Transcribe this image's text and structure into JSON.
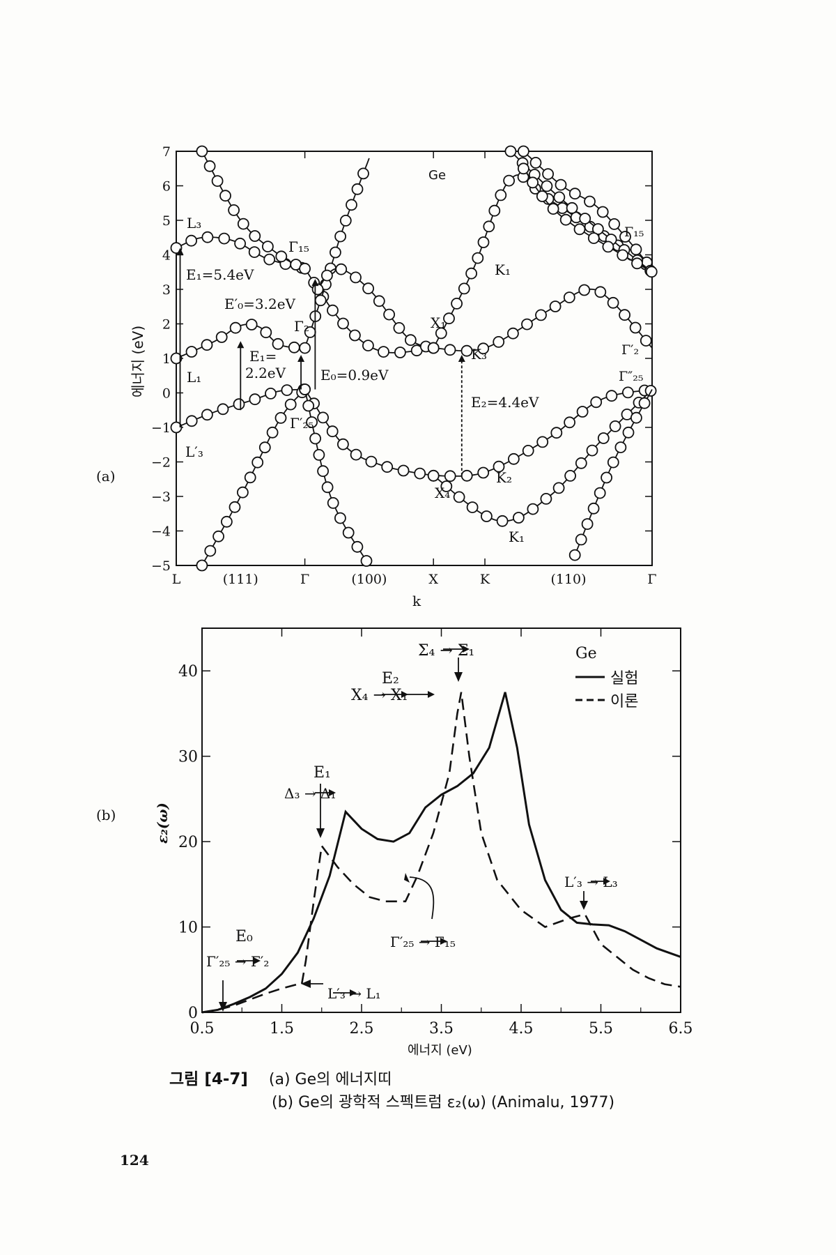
{
  "panel_a": {
    "panel_label": "(a)",
    "material": "Ge",
    "ylabel": "에너지 (eV)",
    "xlabel": "k",
    "y_ticks": [
      "7",
      "6",
      "5",
      "4",
      "3",
      "2",
      "1",
      "0",
      "−1",
      "−2",
      "−3",
      "−4",
      "−5"
    ],
    "x_ticks": [
      "L",
      "(111)",
      "Γ",
      "(100)",
      "X",
      "K",
      "(110)",
      "Γ"
    ],
    "annotations": {
      "L3": "L₃",
      "L1": "L₁",
      "L3p": "L′₃",
      "G15a": "Γ₁₅",
      "G2": "Γ₂",
      "G25p": "Γ′₂₅",
      "K1a": "K₁",
      "X1": "X₁",
      "K3": "K₃",
      "K2": "K₂",
      "X4": "X₄",
      "K1b": "K₁",
      "G15b": "Γ₁₅",
      "G2p": "Γ′₂",
      "G25pp": "Γ″₂₅",
      "E1a": "E₁=5.4eV",
      "E0p": "E′₀=3.2eV",
      "E1b1": "E₁=",
      "E1b2": "2.2eV",
      "E0": "E₀=0.9eV",
      "E2": "E₂=4.4eV"
    }
  },
  "panel_b": {
    "panel_label": "(b)",
    "ylabel": "ε₂(ω)",
    "xlabel": "에너지 (eV)",
    "y_ticks": [
      "0",
      "10",
      "20",
      "30",
      "40"
    ],
    "x_ticks": [
      "0.5",
      "1.5",
      "2.5",
      "3.5",
      "4.5",
      "5.5",
      "6.5"
    ],
    "legend": {
      "title": "Ge",
      "experiment": "실험",
      "theory": "이론"
    },
    "annotations": {
      "E0": "E₀",
      "E0_trans": "Γ′₂₅ → Γ′₂",
      "L3_L1": "L′₃ → L₁",
      "E1": "E₁",
      "E1_trans": "Δ₃ → Δ₁",
      "E2": "E₂",
      "E2_trans": "X₄ → X₁",
      "Sigma": "Σ₄ → Σ₁",
      "G25_G15": "Γ′₂₅ → Γ₁₅",
      "L3_L3": "L′₃ → L₃"
    }
  },
  "caption": {
    "figure": "그림 [4-7]",
    "line_a": "(a)  Ge의  에너지띠",
    "line_b": "(b)  Ge의  광학적  스펙트럼  ε₂(ω)  (Animalu, 1977)"
  },
  "page_number": "124",
  "chart_data": [
    {
      "type": "line",
      "title": "",
      "xlabel": "k",
      "ylabel": "에너지 (eV)",
      "ylim": [
        -5,
        7
      ],
      "x_categories": [
        "L",
        "Γ",
        "X",
        "K",
        "Γ"
      ],
      "x_positions": [
        0,
        1,
        2.0,
        2.4,
        3.7
      ],
      "series": [
        {
          "points": [
            [
              0,
              4.2
            ],
            [
              0.2,
              4.5
            ],
            [
              0.45,
              4.4
            ],
            [
              0.7,
              3.9
            ],
            [
              1,
              3.6
            ]
          ]
        },
        {
          "points": [
            [
              0,
              1.0
            ],
            [
              0.3,
              1.5
            ],
            [
              0.5,
              1.95
            ],
            [
              0.65,
              1.9
            ],
            [
              0.8,
              1.4
            ],
            [
              1,
              1.3
            ]
          ]
        },
        {
          "points": [
            [
              0,
              -1.0
            ],
            [
              0.3,
              -0.55
            ],
            [
              0.6,
              -0.2
            ],
            [
              0.8,
              0.05
            ],
            [
              1,
              0.1
            ]
          ]
        },
        {
          "points": [
            [
              0.2,
              7.0
            ],
            [
              0.5,
              5.0
            ],
            [
              0.8,
              4.0
            ],
            [
              1,
              3.6
            ]
          ]
        },
        {
          "points": [
            [
              0.2,
              -5.0
            ],
            [
              0.5,
              -3.0
            ],
            [
              0.8,
              -0.8
            ],
            [
              1,
              0.1
            ]
          ]
        },
        {
          "points": [
            [
              1,
              3.6
            ],
            [
              1.3,
              2.0
            ],
            [
              1.6,
              1.2
            ],
            [
              2.0,
              1.3
            ]
          ]
        },
        {
          "points": [
            [
              1,
              1.3
            ],
            [
              1.15,
              3.0
            ],
            [
              1.3,
              4.8
            ],
            [
              1.5,
              6.8
            ]
          ]
        },
        {
          "points": [
            [
              1,
              0.1
            ],
            [
              1.3,
              -1.5
            ],
            [
              1.6,
              -2.1
            ],
            [
              2.0,
              -2.4
            ]
          ]
        },
        {
          "points": [
            [
              1,
              0.1
            ],
            [
              1.2,
              -3.0
            ],
            [
              1.5,
              -5.0
            ]
          ]
        },
        {
          "points": [
            [
              1.1,
              3.0
            ],
            [
              1.25,
              3.6
            ],
            [
              1.5,
              3.0
            ],
            [
              1.8,
              1.6
            ],
            [
              2.0,
              1.3
            ]
          ]
        },
        {
          "points": [
            [
              2.0,
              1.3
            ],
            [
              2.4,
              1.3
            ],
            [
              2.9,
              2.4
            ],
            [
              3.2,
              3.0
            ],
            [
              3.4,
              2.6
            ],
            [
              3.7,
              1.3
            ]
          ]
        },
        {
          "points": [
            [
              2.0,
              1.3
            ],
            [
              2.3,
              3.5
            ],
            [
              2.6,
              6.2
            ],
            [
              2.9,
              5.6
            ],
            [
              3.7,
              3.6
            ]
          ]
        },
        {
          "points": [
            [
              2.0,
              -2.4
            ],
            [
              2.4,
              -2.3
            ],
            [
              2.9,
              -1.3
            ],
            [
              3.3,
              -0.2
            ],
            [
              3.7,
              0.1
            ]
          ]
        },
        {
          "points": [
            [
              2.0,
              -2.4
            ],
            [
              2.5,
              -3.7
            ],
            [
              2.9,
              -3.0
            ],
            [
              3.3,
              -1.4
            ],
            [
              3.7,
              0.1
            ]
          ]
        },
        {
          "points": [
            [
              3.1,
              -4.7
            ],
            [
              3.4,
              -2.0
            ],
            [
              3.7,
              0.1
            ]
          ]
        },
        {
          "points": [
            [
              2.7,
              7.0
            ],
            [
              3.0,
              6.0
            ],
            [
              3.3,
              5.3
            ],
            [
              3.7,
              3.6
            ]
          ]
        },
        {
          "points": [
            [
              2.6,
              7.0
            ],
            [
              3.0,
              5.6
            ],
            [
              3.7,
              3.5
            ]
          ]
        },
        {
          "points": [
            [
              2.7,
              6.5
            ],
            [
              3.0,
              5.1
            ],
            [
              3.7,
              3.5
            ]
          ]
        }
      ]
    },
    {
      "type": "line",
      "title": "",
      "xlabel": "에너지 (eV)",
      "ylabel": "ε₂(ω)",
      "xlim": [
        0.5,
        6.5
      ],
      "ylim": [
        0,
        45
      ],
      "series": [
        {
          "name": "실험",
          "x": [
            0.5,
            0.7,
            0.9,
            1.1,
            1.3,
            1.5,
            1.7,
            1.9,
            2.1,
            2.3,
            2.5,
            2.7,
            2.9,
            3.1,
            3.3,
            3.5,
            3.7,
            3.9,
            4.1,
            4.3,
            4.45,
            4.6,
            4.8,
            5.0,
            5.2,
            5.4,
            5.6,
            5.8,
            6.0,
            6.2,
            6.5
          ],
          "y": [
            0,
            0.3,
            1,
            1.8,
            2.8,
            4.5,
            7,
            11,
            16,
            23.5,
            21.5,
            20.3,
            20,
            21,
            24,
            25.5,
            26.5,
            28,
            31,
            37.5,
            31,
            22,
            15.5,
            12,
            10.5,
            10.3,
            10.2,
            9.5,
            8.5,
            7.5,
            6.5
          ]
        },
        {
          "name": "이론",
          "x": [
            0.5,
            0.7,
            0.9,
            1.1,
            1.3,
            1.5,
            1.7,
            1.75,
            1.8,
            1.9,
            2.0,
            2.2,
            2.4,
            2.6,
            2.8,
            3.0,
            3.05,
            3.2,
            3.4,
            3.6,
            3.7,
            3.75,
            3.85,
            4.0,
            4.2,
            4.5,
            4.8,
            5.1,
            5.3,
            5.5,
            5.7,
            5.9,
            6.1,
            6.3,
            6.5
          ],
          "y": [
            0,
            0.3,
            0.8,
            1.5,
            2.2,
            2.8,
            3.3,
            3.3,
            6,
            13,
            19.5,
            17,
            15,
            13.5,
            13,
            13,
            13,
            16,
            21,
            28,
            35,
            37.5,
            30,
            21,
            15.5,
            12,
            10,
            11,
            11.5,
            8,
            6.5,
            5,
            4,
            3.3,
            3
          ]
        }
      ]
    }
  ]
}
